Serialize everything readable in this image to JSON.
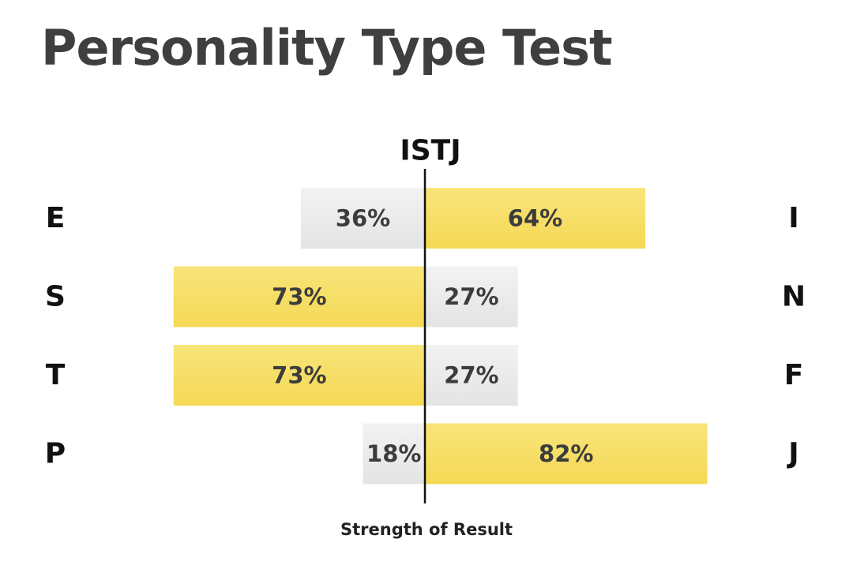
{
  "page": {
    "title": "Personality Type Test"
  },
  "chart_data": {
    "type": "bar",
    "title": "ISTJ",
    "xlabel": "Strength of Result",
    "xlim": [
      0,
      100
    ],
    "colors": {
      "dominant": "#f6dc5c",
      "minor": "#e9e9e9",
      "text": "#3c3c3c",
      "axis": "#111111"
    },
    "rows": [
      {
        "left_letter": "E",
        "right_letter": "I",
        "left_value": 36,
        "right_value": 64,
        "left_label": "36%",
        "right_label": "64%"
      },
      {
        "left_letter": "S",
        "right_letter": "N",
        "left_value": 73,
        "right_value": 27,
        "left_label": "73%",
        "right_label": "27%"
      },
      {
        "left_letter": "T",
        "right_letter": "F",
        "left_value": 73,
        "right_value": 27,
        "left_label": "73%",
        "right_label": "27%"
      },
      {
        "left_letter": "P",
        "right_letter": "J",
        "left_value": 18,
        "right_value": 82,
        "left_label": "18%",
        "right_label": "82%"
      }
    ]
  }
}
